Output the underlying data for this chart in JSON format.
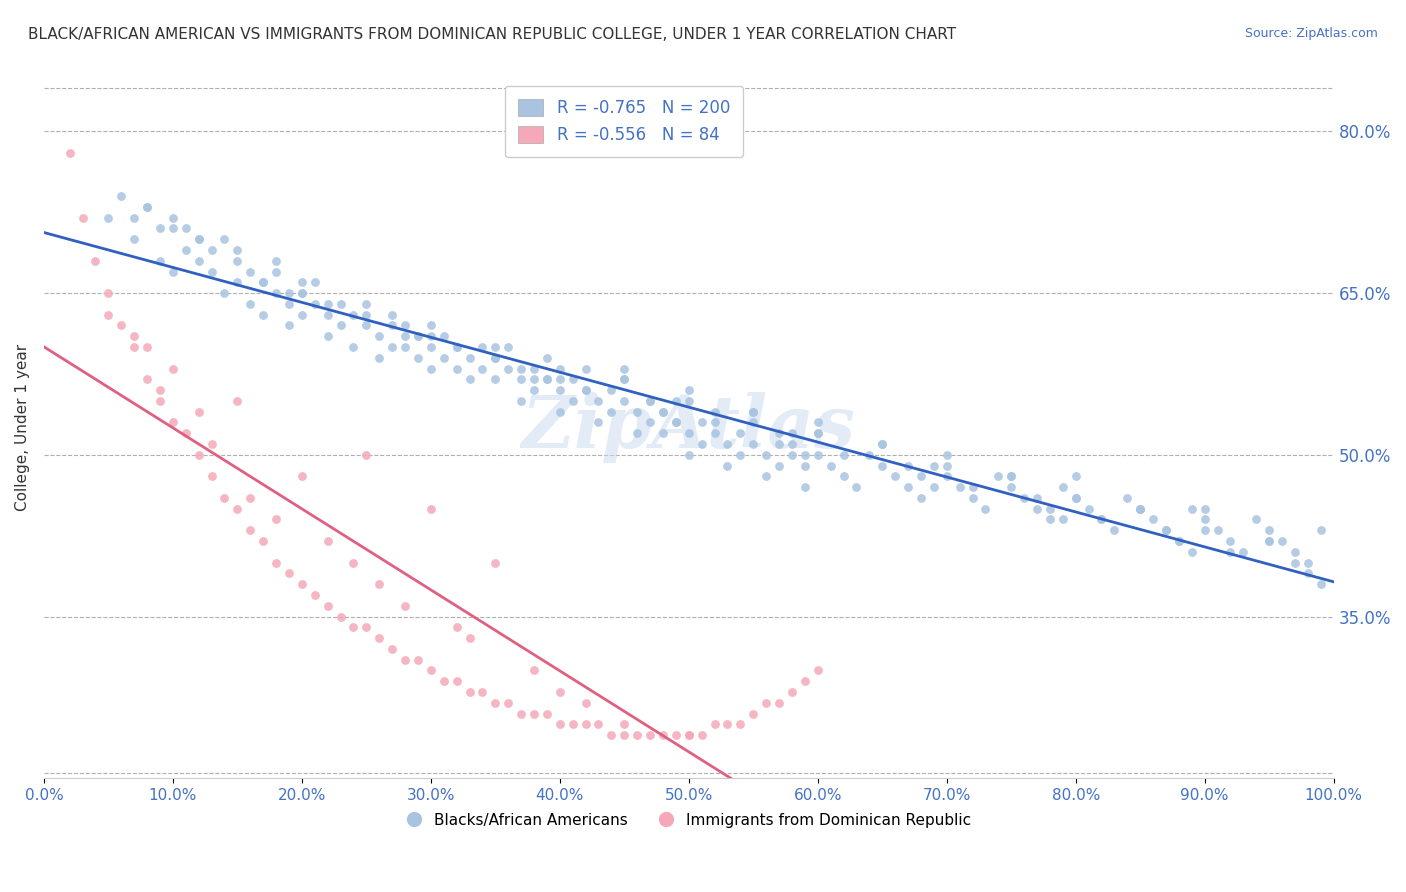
{
  "title": "BLACK/AFRICAN AMERICAN VS IMMIGRANTS FROM DOMINICAN REPUBLIC COLLEGE, UNDER 1 YEAR CORRELATION CHART",
  "source": "Source: ZipAtlas.com",
  "ylabel": "College, Under 1 year",
  "xlabel": "",
  "legend_blue_label": "Blacks/African Americans",
  "legend_pink_label": "Immigrants from Dominican Republic",
  "legend_blue_R": -0.765,
  "legend_blue_N": 200,
  "legend_pink_R": -0.556,
  "legend_pink_N": 84,
  "blue_color": "#a8c4e0",
  "pink_color": "#f4a8b8",
  "blue_line_color": "#3060c0",
  "pink_line_color": "#e06080",
  "right_ytick_labels": [
    "80.0%",
    "65.0%",
    "50.0%",
    "35.0%"
  ],
  "right_ytick_values": [
    0.8,
    0.65,
    0.5,
    0.35
  ],
  "xmin": 0.0,
  "xmax": 1.0,
  "ymin": 0.2,
  "ymax": 0.85,
  "watermark": "ZipAtlas",
  "watermark_color": "#c8d8f0",
  "blue_scatter_x": [
    0.05,
    0.06,
    0.07,
    0.08,
    0.09,
    0.1,
    0.1,
    0.11,
    0.11,
    0.12,
    0.12,
    0.13,
    0.13,
    0.14,
    0.14,
    0.15,
    0.15,
    0.16,
    0.16,
    0.17,
    0.17,
    0.18,
    0.18,
    0.19,
    0.19,
    0.2,
    0.2,
    0.21,
    0.21,
    0.22,
    0.22,
    0.23,
    0.23,
    0.24,
    0.24,
    0.25,
    0.25,
    0.26,
    0.26,
    0.27,
    0.27,
    0.28,
    0.28,
    0.29,
    0.29,
    0.3,
    0.3,
    0.31,
    0.31,
    0.32,
    0.32,
    0.33,
    0.33,
    0.34,
    0.34,
    0.35,
    0.35,
    0.36,
    0.36,
    0.37,
    0.37,
    0.38,
    0.38,
    0.39,
    0.39,
    0.4,
    0.4,
    0.41,
    0.41,
    0.42,
    0.42,
    0.43,
    0.43,
    0.44,
    0.44,
    0.45,
    0.45,
    0.46,
    0.46,
    0.47,
    0.47,
    0.48,
    0.48,
    0.49,
    0.49,
    0.5,
    0.5,
    0.51,
    0.51,
    0.52,
    0.52,
    0.53,
    0.53,
    0.54,
    0.54,
    0.55,
    0.55,
    0.56,
    0.56,
    0.57,
    0.57,
    0.58,
    0.58,
    0.59,
    0.59,
    0.6,
    0.6,
    0.61,
    0.62,
    0.63,
    0.64,
    0.65,
    0.66,
    0.67,
    0.68,
    0.69,
    0.7,
    0.71,
    0.72,
    0.73,
    0.74,
    0.75,
    0.76,
    0.77,
    0.78,
    0.79,
    0.8,
    0.81,
    0.82,
    0.83,
    0.84,
    0.85,
    0.86,
    0.87,
    0.88,
    0.89,
    0.9,
    0.91,
    0.92,
    0.93,
    0.94,
    0.95,
    0.96,
    0.97,
    0.98,
    0.99,
    0.3,
    0.4,
    0.5,
    0.6,
    0.7,
    0.8,
    0.9,
    0.2,
    0.15,
    0.25,
    0.35,
    0.45,
    0.55,
    0.65,
    0.75,
    0.85,
    0.95,
    0.1,
    0.2,
    0.3,
    0.4,
    0.5,
    0.6,
    0.7,
    0.8,
    0.9,
    0.35,
    0.45,
    0.55,
    0.65,
    0.75,
    0.85,
    0.95,
    0.12,
    0.22,
    0.32,
    0.42,
    0.52,
    0.62,
    0.72,
    0.82,
    0.92,
    0.07,
    0.17,
    0.27,
    0.37,
    0.47,
    0.57,
    0.67,
    0.77,
    0.87,
    0.97,
    0.08,
    0.18,
    0.28,
    0.38,
    0.48,
    0.58,
    0.68,
    0.78,
    0.88,
    0.98,
    0.09,
    0.19,
    0.29,
    0.39,
    0.49,
    0.59,
    0.69,
    0.79,
    0.89,
    0.99
  ],
  "blue_scatter_y": [
    0.72,
    0.74,
    0.7,
    0.73,
    0.68,
    0.72,
    0.67,
    0.71,
    0.69,
    0.68,
    0.7,
    0.69,
    0.67,
    0.7,
    0.65,
    0.68,
    0.66,
    0.67,
    0.64,
    0.66,
    0.63,
    0.65,
    0.68,
    0.64,
    0.62,
    0.65,
    0.63,
    0.64,
    0.66,
    0.63,
    0.61,
    0.64,
    0.62,
    0.63,
    0.6,
    0.62,
    0.64,
    0.61,
    0.59,
    0.63,
    0.6,
    0.62,
    0.6,
    0.59,
    0.61,
    0.6,
    0.58,
    0.61,
    0.59,
    0.6,
    0.58,
    0.59,
    0.57,
    0.6,
    0.58,
    0.59,
    0.57,
    0.58,
    0.6,
    0.57,
    0.55,
    0.58,
    0.56,
    0.57,
    0.59,
    0.56,
    0.54,
    0.57,
    0.55,
    0.56,
    0.58,
    0.55,
    0.53,
    0.56,
    0.54,
    0.55,
    0.57,
    0.54,
    0.52,
    0.55,
    0.53,
    0.54,
    0.52,
    0.53,
    0.55,
    0.52,
    0.5,
    0.53,
    0.51,
    0.52,
    0.54,
    0.51,
    0.49,
    0.52,
    0.5,
    0.51,
    0.53,
    0.5,
    0.48,
    0.51,
    0.49,
    0.5,
    0.52,
    0.49,
    0.47,
    0.5,
    0.52,
    0.49,
    0.48,
    0.47,
    0.5,
    0.49,
    0.48,
    0.47,
    0.46,
    0.49,
    0.48,
    0.47,
    0.46,
    0.45,
    0.48,
    0.47,
    0.46,
    0.45,
    0.44,
    0.47,
    0.46,
    0.45,
    0.44,
    0.43,
    0.46,
    0.45,
    0.44,
    0.43,
    0.42,
    0.45,
    0.44,
    0.43,
    0.42,
    0.41,
    0.44,
    0.43,
    0.42,
    0.41,
    0.4,
    0.43,
    0.62,
    0.58,
    0.56,
    0.53,
    0.5,
    0.48,
    0.45,
    0.66,
    0.69,
    0.63,
    0.59,
    0.57,
    0.54,
    0.51,
    0.48,
    0.45,
    0.42,
    0.71,
    0.65,
    0.61,
    0.57,
    0.55,
    0.52,
    0.49,
    0.46,
    0.43,
    0.6,
    0.58,
    0.54,
    0.51,
    0.48,
    0.45,
    0.42,
    0.7,
    0.64,
    0.6,
    0.56,
    0.53,
    0.5,
    0.47,
    0.44,
    0.41,
    0.72,
    0.66,
    0.62,
    0.58,
    0.55,
    0.52,
    0.49,
    0.46,
    0.43,
    0.4,
    0.73,
    0.67,
    0.61,
    0.57,
    0.54,
    0.51,
    0.48,
    0.45,
    0.42,
    0.39,
    0.71,
    0.65,
    0.61,
    0.57,
    0.53,
    0.5,
    0.47,
    0.44,
    0.41,
    0.38
  ],
  "pink_scatter_x": [
    0.02,
    0.03,
    0.04,
    0.05,
    0.06,
    0.07,
    0.08,
    0.09,
    0.1,
    0.11,
    0.12,
    0.13,
    0.14,
    0.15,
    0.16,
    0.17,
    0.18,
    0.19,
    0.2,
    0.21,
    0.22,
    0.23,
    0.24,
    0.25,
    0.26,
    0.27,
    0.28,
    0.29,
    0.3,
    0.31,
    0.32,
    0.33,
    0.34,
    0.35,
    0.36,
    0.37,
    0.38,
    0.39,
    0.4,
    0.41,
    0.42,
    0.43,
    0.44,
    0.45,
    0.46,
    0.47,
    0.48,
    0.49,
    0.5,
    0.51,
    0.52,
    0.53,
    0.54,
    0.55,
    0.56,
    0.57,
    0.58,
    0.59,
    0.6,
    0.25,
    0.3,
    0.35,
    0.15,
    0.2,
    0.1,
    0.08,
    0.12,
    0.18,
    0.22,
    0.28,
    0.32,
    0.38,
    0.42,
    0.05,
    0.07,
    0.09,
    0.13,
    0.16,
    0.24,
    0.26,
    0.33,
    0.4,
    0.45,
    0.5
  ],
  "pink_scatter_y": [
    0.78,
    0.72,
    0.68,
    0.65,
    0.62,
    0.6,
    0.57,
    0.55,
    0.53,
    0.52,
    0.5,
    0.48,
    0.46,
    0.45,
    0.43,
    0.42,
    0.4,
    0.39,
    0.38,
    0.37,
    0.36,
    0.35,
    0.34,
    0.34,
    0.33,
    0.32,
    0.31,
    0.31,
    0.3,
    0.29,
    0.29,
    0.28,
    0.28,
    0.27,
    0.27,
    0.26,
    0.26,
    0.26,
    0.25,
    0.25,
    0.25,
    0.25,
    0.24,
    0.24,
    0.24,
    0.24,
    0.24,
    0.24,
    0.24,
    0.24,
    0.25,
    0.25,
    0.25,
    0.26,
    0.27,
    0.27,
    0.28,
    0.29,
    0.3,
    0.5,
    0.45,
    0.4,
    0.55,
    0.48,
    0.58,
    0.6,
    0.54,
    0.44,
    0.42,
    0.36,
    0.34,
    0.3,
    0.27,
    0.63,
    0.61,
    0.56,
    0.51,
    0.46,
    0.4,
    0.38,
    0.33,
    0.28,
    0.25,
    0.24
  ]
}
